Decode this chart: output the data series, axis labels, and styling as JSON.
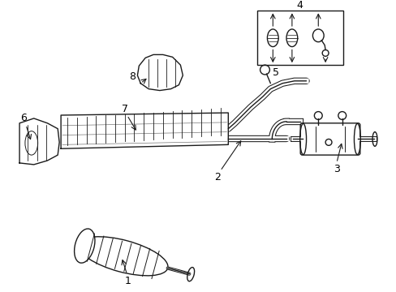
{
  "bg_color": "#ffffff",
  "line_color": "#1a1a1a",
  "lw": 1.0,
  "fig_width": 4.89,
  "fig_height": 3.6,
  "dpi": 100,
  "label_fontsize": 9
}
